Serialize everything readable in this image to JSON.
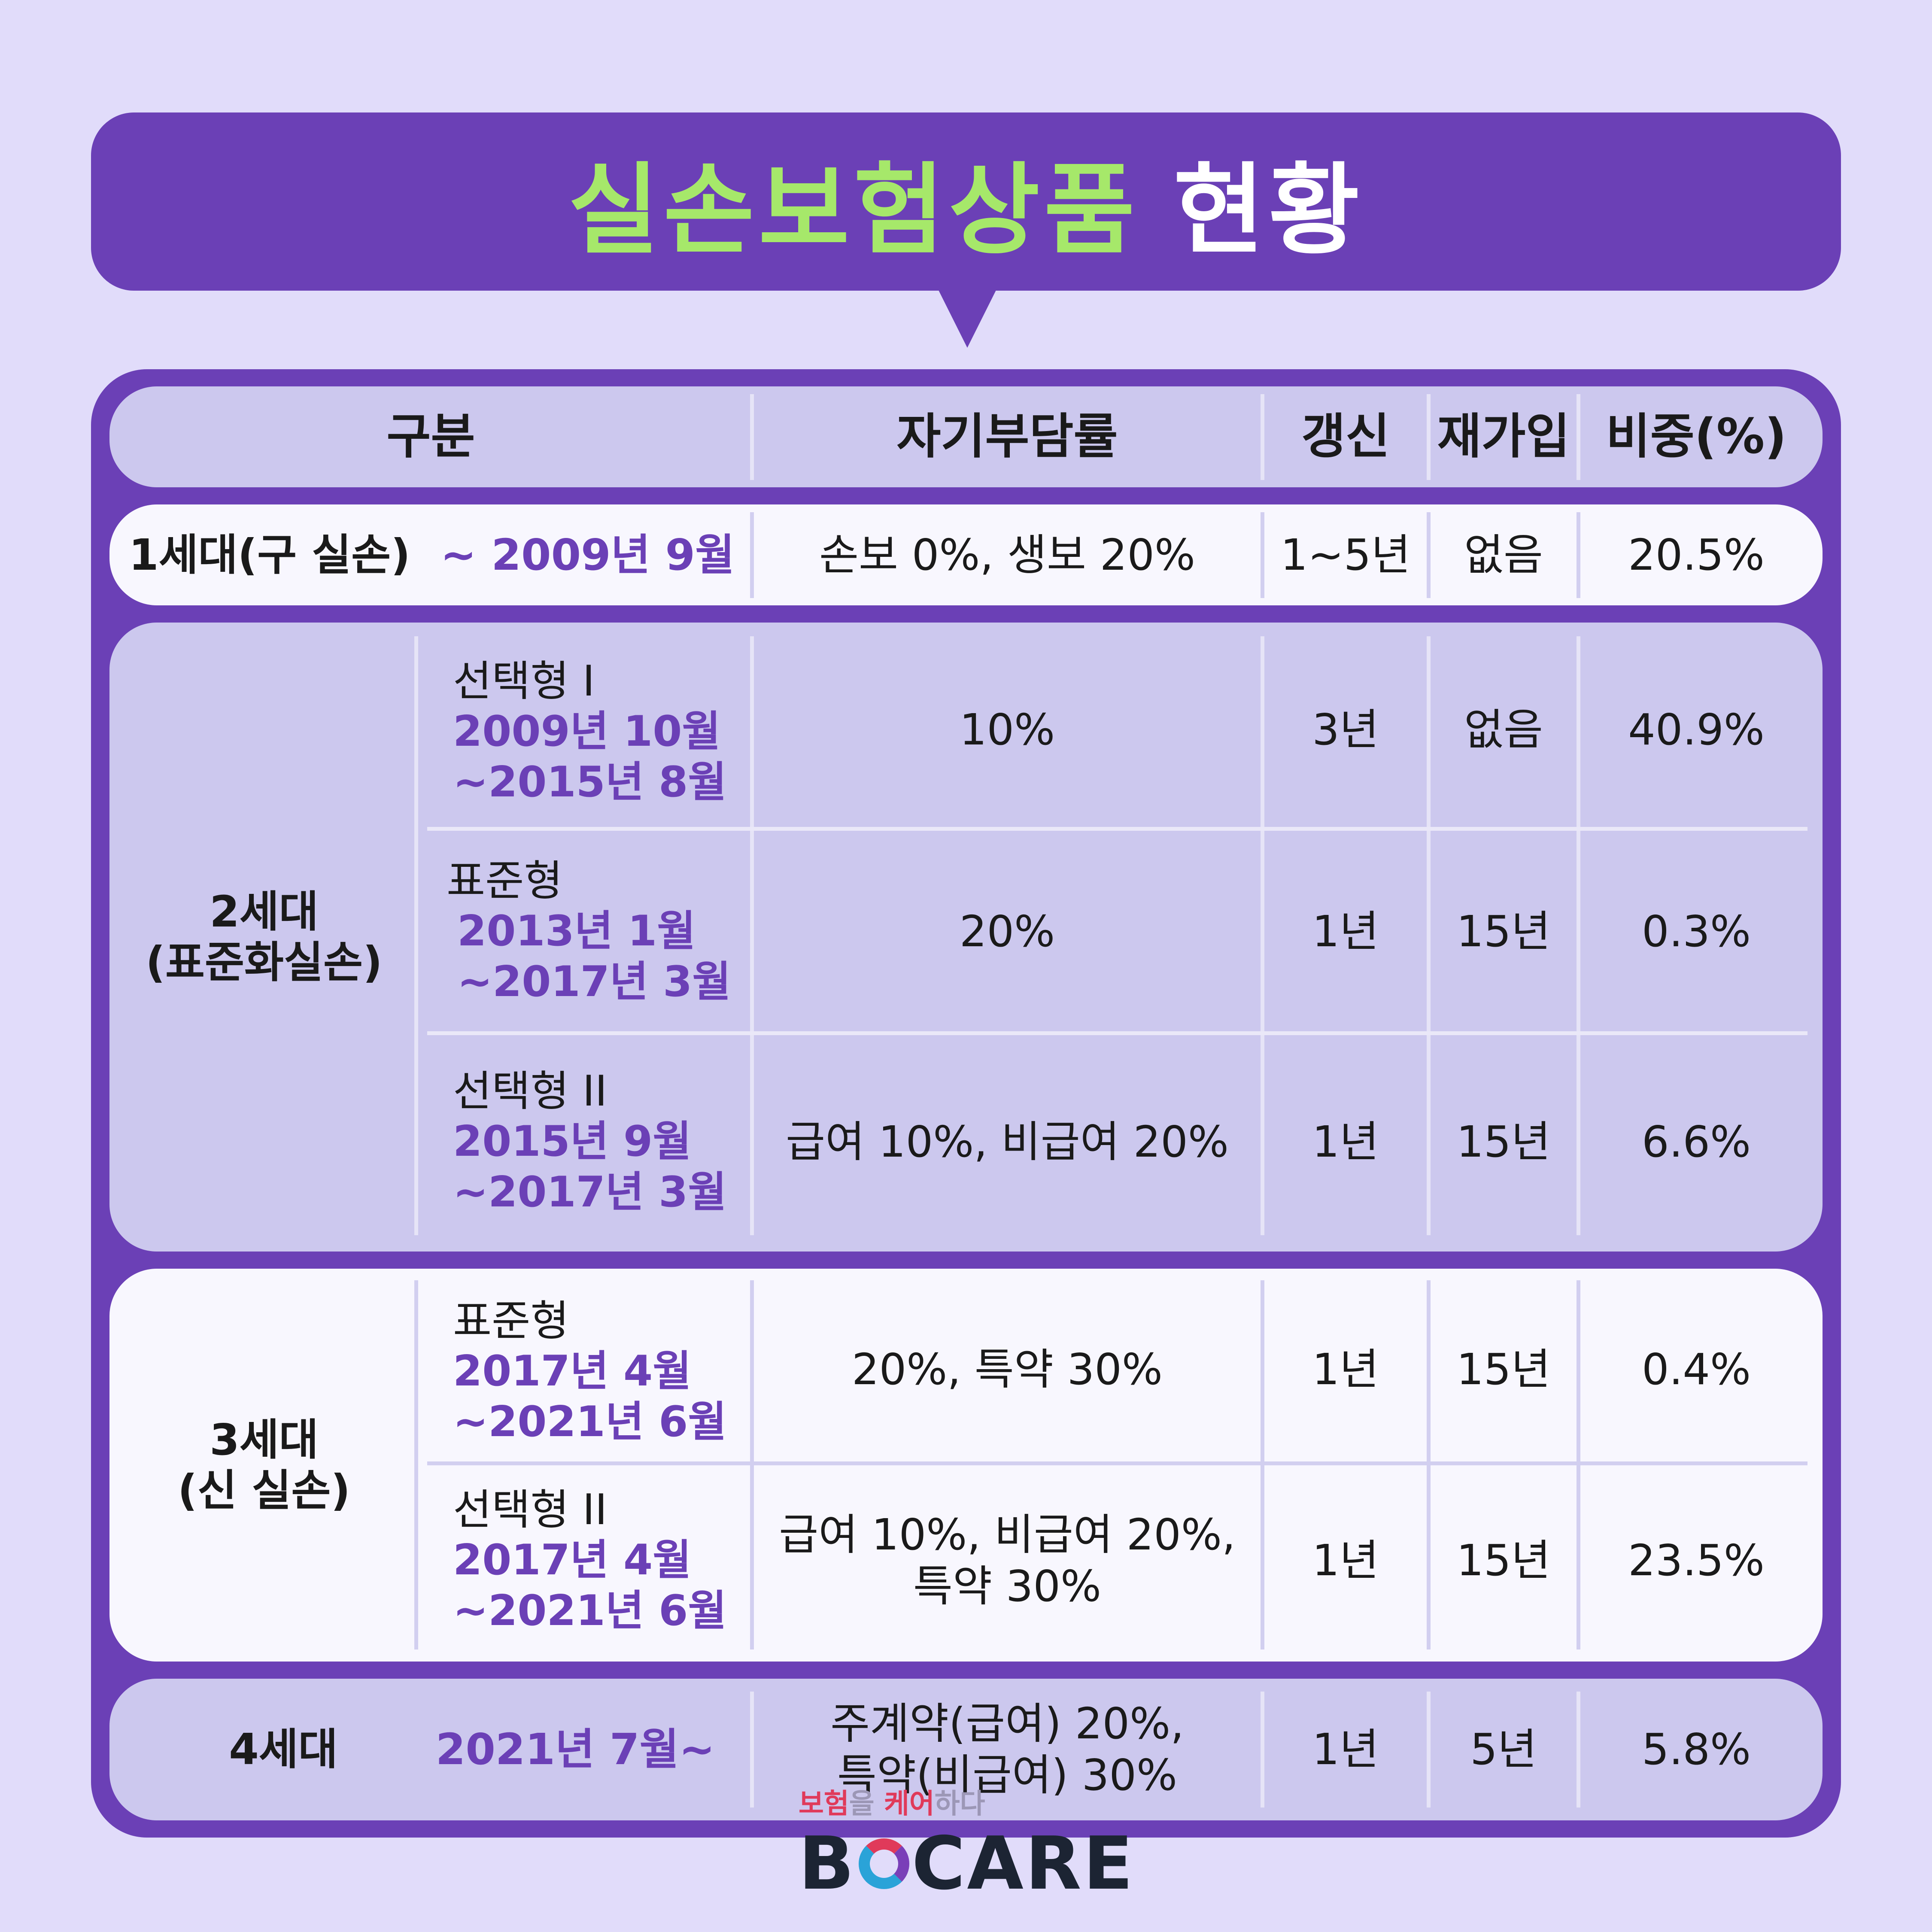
{
  "title": {
    "part1": "실손보험상품",
    "part2": "현황"
  },
  "header": {
    "category": "구분",
    "copay": "자기부담률",
    "renewal": "갱신",
    "rejoin": "재가입",
    "share": "비중(%)"
  },
  "gen1": {
    "label": "1세대(구 실손)",
    "period": "~ 2009년 9월",
    "copay": "손보 0%, 생보 20%",
    "renewal": "1~5년",
    "rejoin": "없음",
    "share": "20.5%"
  },
  "gen2": {
    "label_line1": "2세대",
    "label_line2": "(표준화실손)",
    "rows": [
      {
        "name": "선택형 I",
        "date1": "2009년 10월",
        "date2": "~2015년 8월",
        "copay": "10%",
        "renewal": "3년",
        "rejoin": "없음",
        "share": "40.9%"
      },
      {
        "name": "표준형",
        "date1": "2013년 1월",
        "date2": "~2017년 3월",
        "copay": "20%",
        "renewal": "1년",
        "rejoin": "15년",
        "share": "0.3%"
      },
      {
        "name": "선택형 II",
        "date1": "2015년 9월",
        "date2": "~2017년 3월",
        "copay": "급여 10%, 비급여 20%",
        "renewal": "1년",
        "rejoin": "15년",
        "share": "6.6%"
      }
    ]
  },
  "gen3": {
    "label_line1": "3세대",
    "label_line2": "(신 실손)",
    "rows": [
      {
        "name": "표준형",
        "date1": "2017년 4월",
        "date2": "~2021년 6월",
        "copay": "20%, 특약 30%",
        "renewal": "1년",
        "rejoin": "15년",
        "share": "0.4%"
      },
      {
        "name": "선택형 II",
        "date1": "2017년 4월",
        "date2": "~2021년 6월",
        "copay_line1": "급여 10%, 비급여 20%,",
        "copay_line2": "특약 30%",
        "renewal": "1년",
        "rejoin": "15년",
        "share": "23.5%"
      }
    ]
  },
  "gen4": {
    "label": "4세대",
    "period": "2021년 7월~",
    "copay_line1": "주계약(급여) 20%,",
    "copay_line2": "특약(비급여) 30%",
    "renewal": "1년",
    "rejoin": "5년",
    "share": "5.8%"
  },
  "logo": {
    "tagline_a": "보험",
    "tagline_b": "을 ",
    "tagline_c": "케어",
    "tagline_d": "하다",
    "brand_a": "B",
    "brand_b": "CARE"
  },
  "colors": {
    "accent": "#6b40b6",
    "title_green": "#a6e86a",
    "background": "#e1dcfa"
  }
}
